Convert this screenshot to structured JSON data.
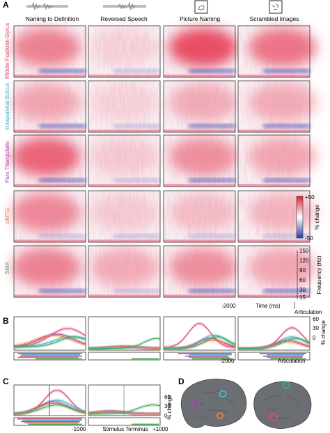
{
  "panel_letters": {
    "a": "A",
    "b": "B",
    "c": "C",
    "d": "D"
  },
  "conditions": [
    "Naming to Definition",
    "Reversed Speech",
    "Picture Naming",
    "Scrambled Images"
  ],
  "regions": [
    {
      "name": "Middle Fusiform Gyrus",
      "color": "#e0457b"
    },
    {
      "name": "Intraparietal Sulcus",
      "color": "#3fb8d6"
    },
    {
      "name": "Pars Triangularis",
      "color": "#a050b0"
    },
    {
      "name": "pMTG",
      "color": "#ef7b3a"
    },
    {
      "name": "SMA",
      "color": "#3fae5a"
    }
  ],
  "colorbar": {
    "max_label": "+50",
    "min_label": "-50",
    "label": "% change",
    "max_color": "#e0203a",
    "min_color": "#2a3aa8"
  },
  "frequency_axis": {
    "label": "Frequency (Hz)",
    "ticks": [
      "150",
      "120",
      "90",
      "60",
      "30",
      "15"
    ]
  },
  "panel_a_time_axis": {
    "start_label": "-2000",
    "label": "Time (ms)",
    "end_label": "Articulation"
  },
  "panel_b": {
    "start_label": "-2000",
    "end_label": "Articulation",
    "y_label": "% change",
    "y_ticks": [
      "60",
      "30",
      "0"
    ]
  },
  "panel_c": {
    "start_label": "-1000",
    "center_label": "Stimulus Terminus",
    "end_label": "+1000",
    "y_label": "% change",
    "y_ticks": [
      "60",
      "30",
      "0"
    ]
  },
  "chart_data": {
    "type": "line",
    "xlabel": "",
    "ylabel": "% change",
    "ylim": [
      0,
      60
    ],
    "panels": [
      {
        "condition": "Naming to Definition",
        "x_range": [
          -2000,
          0
        ],
        "peak_series": "Middle Fusiform Gyrus",
        "peak_value": 38
      },
      {
        "condition": "Reversed Speech",
        "x_range": [
          -2000,
          0
        ],
        "peak_series": "SMA",
        "peak_value": 18
      },
      {
        "condition": "Picture Naming",
        "x_range": [
          -2000,
          0
        ],
        "peak_series": "Middle Fusiform Gyrus",
        "peak_value": 52
      },
      {
        "condition": "Scrambled Images",
        "x_range": [
          -2000,
          0
        ],
        "peak_series": "Middle Fusiform Gyrus",
        "peak_value": 45
      }
    ]
  }
}
